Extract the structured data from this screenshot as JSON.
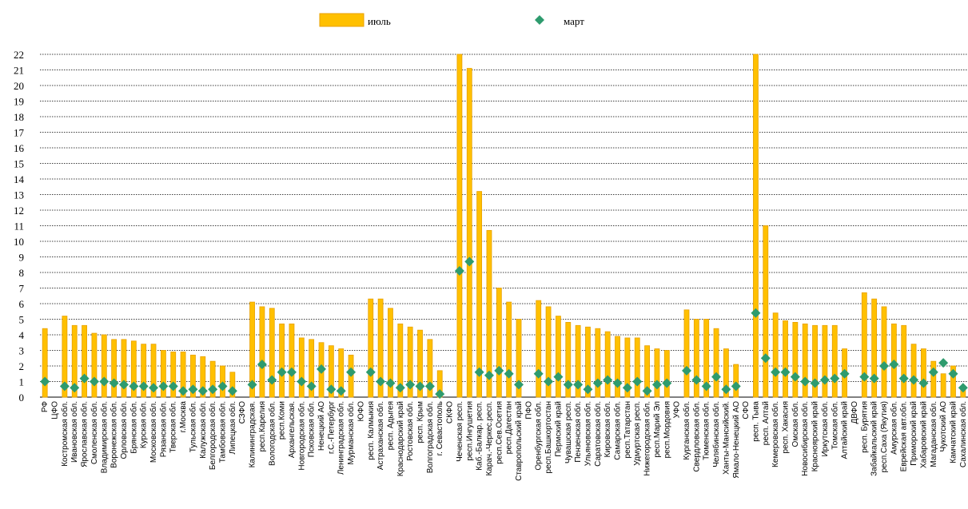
{
  "chart_data": {
    "type": "bar",
    "categories": [
      "РФ",
      "ЦФО",
      "Костромская обл.",
      "Ивановская обл.",
      "Ярославская обл.",
      "Смоленская обл.",
      "Владимирская обл.",
      "Воронежская обл.",
      "Орловская обл.",
      "Брянская обл.",
      "Курская обл.",
      "Московская обл.",
      "Рязанская обл.",
      "Тверская обл.",
      "г.Москва",
      "Тульская обл.",
      "Калужская обл.",
      "Белгородская обл.",
      "Тамбовская обл.",
      "Липецкая обл.",
      "СЗФО",
      "Калининградская.",
      "респ.Карелия",
      "Вологодская обл.",
      "респ.Коми",
      "Архангельская.",
      "Новгородская обл.",
      "Псковская обл.",
      "Ненецкий АО",
      "г.С.-Петербург",
      "Ленинградская обл.",
      "Мурманская обл.",
      "ЮФО",
      "респ. Калмыкия",
      "Астраханская обл.",
      "респ. Адыгея",
      "Краснодарский край",
      "Ростовская обл.",
      "респ. Крым",
      "Волгоградская обл.",
      "г. Севастополь",
      "СКФО",
      "Чеченская респ.",
      "респ.Ингушетия",
      "Каб.-Балкар. респ.",
      "Карач.-Черкес.респ.",
      "респ.Сев.Осетия",
      "респ.Дагестан",
      "Ставропольский край",
      "ПФО",
      "Оренбургская обл.",
      "респ.Башкортостан",
      "Пермский край",
      "Чувашская респ.",
      "Пензенская обл.",
      "Ульяновская обл.",
      "Саратовская обл.",
      "Кировская обл.",
      "Самарская обл.",
      "респ.Татарстан",
      "Удмуртская респ.",
      "Нижегородская обл.",
      "респ.Марий Эл",
      "респ.Мордовия",
      "УФО",
      "Курганская обл.",
      "Свердловская обл.",
      "Тюменская обл.",
      "Челябинская обл.",
      "Ханты-Мансийский.",
      "Ямало-Ненецкий АО",
      "СФО",
      "респ. Тыва",
      "респ. Алтай",
      "Кемеровская обл.",
      "респ. Хакасия",
      "Омская обл.",
      "Новосибирская обл.",
      "Красноярский край",
      "Иркутская обл.",
      "Томская обл.",
      "Алтайский край",
      "ДВФО",
      "респ. Бурятия",
      "Забайкальский край",
      "респ.Саха (Якутия)",
      "Амурская обл.",
      "Еврейская авт.обл.",
      "Приморский край",
      "Хабаровский край",
      "Магаданская обл.",
      "Чукотский АО",
      "Камчатский край",
      "Сахалинская обл."
    ],
    "series": [
      {
        "name": "июль",
        "color": "#FFC000",
        "values": [
          4.4,
          null,
          5.2,
          4.6,
          4.6,
          4.1,
          4.0,
          3.7,
          3.7,
          3.6,
          3.4,
          3.4,
          3.0,
          2.9,
          2.9,
          2.7,
          2.6,
          2.3,
          2.0,
          1.6,
          null,
          6.1,
          5.8,
          5.7,
          4.7,
          4.7,
          3.8,
          3.7,
          3.5,
          3.3,
          3.1,
          2.7,
          null,
          6.3,
          6.3,
          5.7,
          4.7,
          4.5,
          4.3,
          3.7,
          1.7,
          null,
          22,
          21.1,
          13.2,
          10.7,
          7.0,
          6.1,
          5.0,
          null,
          6.2,
          5.8,
          5.2,
          4.8,
          4.6,
          4.5,
          4.4,
          4.2,
          3.9,
          3.8,
          3.8,
          3.3,
          3.1,
          3.0,
          null,
          5.6,
          5.0,
          5.0,
          4.4,
          3.1,
          2.1,
          null,
          22,
          11.0,
          5.4,
          4.9,
          4.8,
          4.7,
          4.6,
          4.6,
          4.6,
          3.1,
          null,
          6.7,
          6.3,
          5.8,
          4.7,
          4.6,
          3.4,
          3.1,
          2.3,
          1.5,
          2.0,
          0.5
        ]
      },
      {
        "name": "март",
        "color": "#2E9B6E",
        "values": [
          1.0,
          null,
          0.7,
          0.6,
          1.2,
          1.0,
          1.0,
          0.9,
          0.8,
          0.7,
          0.7,
          0.6,
          0.7,
          0.7,
          0.4,
          0.5,
          0.4,
          0.5,
          0.7,
          0.4,
          null,
          0.8,
          2.1,
          1.1,
          1.6,
          1.6,
          1.0,
          0.7,
          1.8,
          0.5,
          0.4,
          1.6,
          null,
          1.6,
          1.0,
          0.9,
          0.6,
          0.8,
          0.7,
          0.7,
          0.2,
          null,
          8.1,
          8.7,
          1.6,
          1.4,
          1.7,
          1.5,
          0.8,
          null,
          1.5,
          1.0,
          1.3,
          0.8,
          0.8,
          0.5,
          0.9,
          1.1,
          0.9,
          0.6,
          1.0,
          0.4,
          0.8,
          0.9,
          null,
          1.7,
          1.1,
          0.7,
          1.3,
          0.5,
          0.7,
          null,
          5.4,
          2.5,
          1.6,
          1.6,
          1.3,
          1.0,
          0.9,
          1.1,
          1.2,
          1.5,
          null,
          1.3,
          1.2,
          2.0,
          2.1,
          1.2,
          1.1,
          0.9,
          1.6,
          2.2,
          1.5,
          0.6
        ]
      }
    ],
    "ylim": [
      0,
      22
    ],
    "yticks": [
      0,
      1,
      2,
      3,
      4,
      5,
      6,
      7,
      8,
      9,
      10,
      11,
      12,
      13,
      14,
      15,
      16,
      17,
      18,
      19,
      20,
      21,
      22
    ],
    "grid": true
  }
}
